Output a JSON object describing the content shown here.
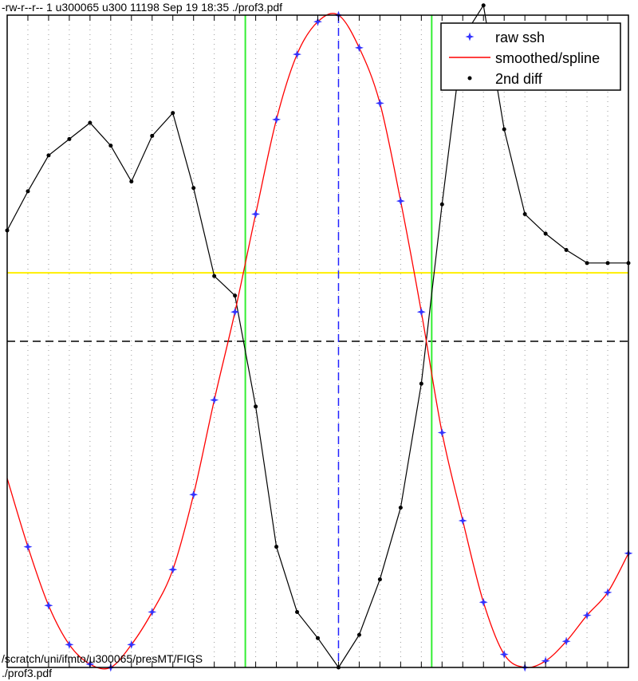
{
  "header": {
    "file_listing": "-rw-r--r-- 1 u300065 u300 11198 Sep 19 18:35 ./prof3.pdf"
  },
  "footer": {
    "path_line": "/scratch/uni/ifmto/u300065/presMT/FIGS",
    "file_line": "./prof3.pdf"
  },
  "chart_data": {
    "type": "line",
    "title": "",
    "xlabel": "",
    "ylabel": "",
    "xlim": [
      0,
      30
    ],
    "ylim": [
      -1,
      1
    ],
    "grid": "vertical dotted",
    "legend_position": "top-right",
    "series": [
      {
        "name": "raw ssh",
        "style": "blue star markers",
        "color": "#3333ff",
        "x": [
          1,
          2,
          3,
          4,
          5,
          6,
          7,
          8,
          9,
          10,
          11,
          12,
          13,
          14,
          15,
          16,
          17,
          18,
          19,
          20,
          21,
          22,
          23,
          24,
          25,
          26,
          27,
          28,
          29,
          30
        ],
        "y": [
          -0.63,
          -0.81,
          -0.93,
          -0.99,
          -1.0,
          -0.93,
          -0.83,
          -0.7,
          -0.47,
          -0.18,
          0.09,
          0.39,
          0.68,
          0.88,
          0.98,
          1.0,
          0.9,
          0.73,
          0.43,
          0.09,
          -0.28,
          -0.55,
          -0.8,
          -0.96,
          -1.0,
          -0.98,
          -0.92,
          -0.84,
          -0.77,
          -0.65
        ]
      },
      {
        "name": "smoothed/spline",
        "style": "red solid line",
        "color": "#ff0000",
        "x": [
          0,
          1,
          2,
          3,
          4,
          5,
          6,
          7,
          8,
          9,
          10,
          11,
          12,
          13,
          14,
          15,
          16,
          17,
          18,
          19,
          20,
          21,
          22,
          23,
          24,
          25,
          26,
          27,
          28,
          29,
          30
        ],
        "y": [
          -0.42,
          -0.63,
          -0.81,
          -0.93,
          -0.99,
          -1.0,
          -0.93,
          -0.83,
          -0.7,
          -0.47,
          -0.18,
          0.09,
          0.39,
          0.68,
          0.88,
          0.98,
          1.0,
          0.9,
          0.73,
          0.43,
          0.09,
          -0.28,
          -0.55,
          -0.8,
          -0.96,
          -1.0,
          -0.98,
          -0.92,
          -0.84,
          -0.77,
          -0.65
        ]
      },
      {
        "name": "2nd diff",
        "style": "black dot markers with line",
        "color": "#000000",
        "x": [
          0,
          1,
          2,
          3,
          4,
          5,
          6,
          7,
          8,
          9,
          10,
          11,
          12,
          13,
          14,
          15,
          16,
          17,
          18,
          19,
          20,
          21,
          22,
          23,
          24,
          25,
          26,
          27,
          28,
          29,
          30
        ],
        "y": [
          0.34,
          0.46,
          0.57,
          0.62,
          0.67,
          0.6,
          0.49,
          0.63,
          0.7,
          0.47,
          0.2,
          0.14,
          -0.2,
          -0.63,
          -0.83,
          -0.91,
          -1.0,
          -0.9,
          -0.73,
          -0.51,
          -0.13,
          0.42,
          0.93,
          1.03,
          0.65,
          0.39,
          0.33,
          0.28,
          0.24,
          0.24,
          0.24
        ]
      }
    ],
    "reference_lines": {
      "horizontal_yellow_y": 0.21,
      "horizontal_dashed_black_y": 0.0,
      "vertical_dashed_blue_x": 16,
      "vertical_green_x": [
        11.5,
        20.5
      ]
    }
  }
}
